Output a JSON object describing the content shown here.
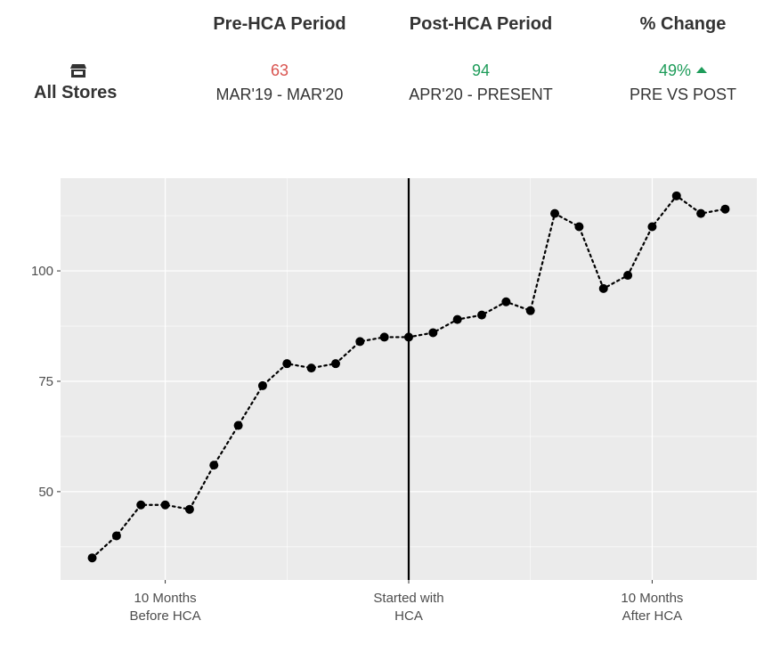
{
  "summary": {
    "row_label": "All Stores",
    "row_icon": "store-icon",
    "columns": [
      {
        "header": "Pre-HCA Period",
        "value": "63",
        "value_color": "#d9534f",
        "period": "MAR'19 - MAR'20"
      },
      {
        "header": "Post-HCA Period",
        "value": "94",
        "value_color": "#1e9c5a",
        "period": "APR'20 - PRESENT"
      },
      {
        "header": "% Change",
        "value": "49%",
        "value_color": "#1e9c5a",
        "period": "PRE VS POST",
        "trend_icon": "up-triangle-icon"
      }
    ]
  },
  "chart_data": {
    "type": "line",
    "series": [
      {
        "values": [
          35,
          40,
          47,
          47,
          46,
          56,
          65,
          74,
          79,
          78,
          79,
          84,
          85,
          85,
          86,
          89,
          90,
          93,
          91,
          113,
          110,
          96,
          99,
          110,
          117,
          113,
          114
        ]
      }
    ],
    "x": [
      -13,
      -12,
      -11,
      -10,
      -9,
      -8,
      -7,
      -6,
      -5,
      -4,
      -3,
      -2,
      -1,
      0,
      1,
      2,
      3,
      4,
      5,
      6,
      7,
      8,
      9,
      10,
      11,
      12,
      13
    ],
    "xlim": [
      -14.3,
      14.3
    ],
    "ylim": [
      30,
      121
    ],
    "x_ticks": [
      {
        "x": -10,
        "label": [
          "10 Months",
          "Before HCA"
        ]
      },
      {
        "x": 0,
        "label": [
          "Started with",
          "HCA"
        ]
      },
      {
        "x": 10,
        "label": [
          "10 Months",
          "After HCA"
        ]
      }
    ],
    "y_ticks": [
      50,
      75,
      100
    ],
    "vline_x": 0,
    "line_style": "dotted",
    "marker": "circle",
    "colors": {
      "panel_bg": "#ebebeb",
      "grid": "#ffffff",
      "line": "#000000",
      "tick_text": "#4d4d4d"
    },
    "grid": true
  }
}
